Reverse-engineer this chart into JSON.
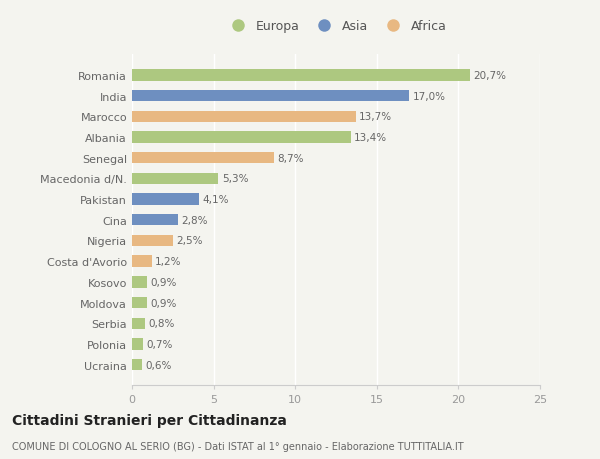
{
  "categories": [
    "Romania",
    "India",
    "Marocco",
    "Albania",
    "Senegal",
    "Macedonia d/N.",
    "Pakistan",
    "Cina",
    "Nigeria",
    "Costa d'Avorio",
    "Kosovo",
    "Moldova",
    "Serbia",
    "Polonia",
    "Ucraina"
  ],
  "values": [
    20.7,
    17.0,
    13.7,
    13.4,
    8.7,
    5.3,
    4.1,
    2.8,
    2.5,
    1.2,
    0.9,
    0.9,
    0.8,
    0.7,
    0.6
  ],
  "labels": [
    "20,7%",
    "17,0%",
    "13,7%",
    "13,4%",
    "8,7%",
    "5,3%",
    "4,1%",
    "2,8%",
    "2,5%",
    "1,2%",
    "0,9%",
    "0,9%",
    "0,8%",
    "0,7%",
    "0,6%"
  ],
  "continents": [
    "Europa",
    "Asia",
    "Africa",
    "Europa",
    "Africa",
    "Europa",
    "Asia",
    "Asia",
    "Africa",
    "Africa",
    "Europa",
    "Europa",
    "Europa",
    "Europa",
    "Europa"
  ],
  "colors": {
    "Europa": "#adc880",
    "Asia": "#6e8fc0",
    "Africa": "#e8b882"
  },
  "legend_labels": [
    "Europa",
    "Asia",
    "Africa"
  ],
  "xlim": [
    0,
    25
  ],
  "xticks": [
    0,
    5,
    10,
    15,
    20,
    25
  ],
  "title": "Cittadini Stranieri per Cittadinanza",
  "subtitle": "COMUNE DI COLOGNO AL SERIO (BG) - Dati ISTAT al 1° gennaio - Elaborazione TUTTITALIA.IT",
  "background_color": "#f4f4ef",
  "bar_height": 0.55,
  "label_fontsize": 7.5,
  "tick_fontsize": 8,
  "title_fontsize": 10,
  "subtitle_fontsize": 7,
  "legend_fontsize": 9
}
